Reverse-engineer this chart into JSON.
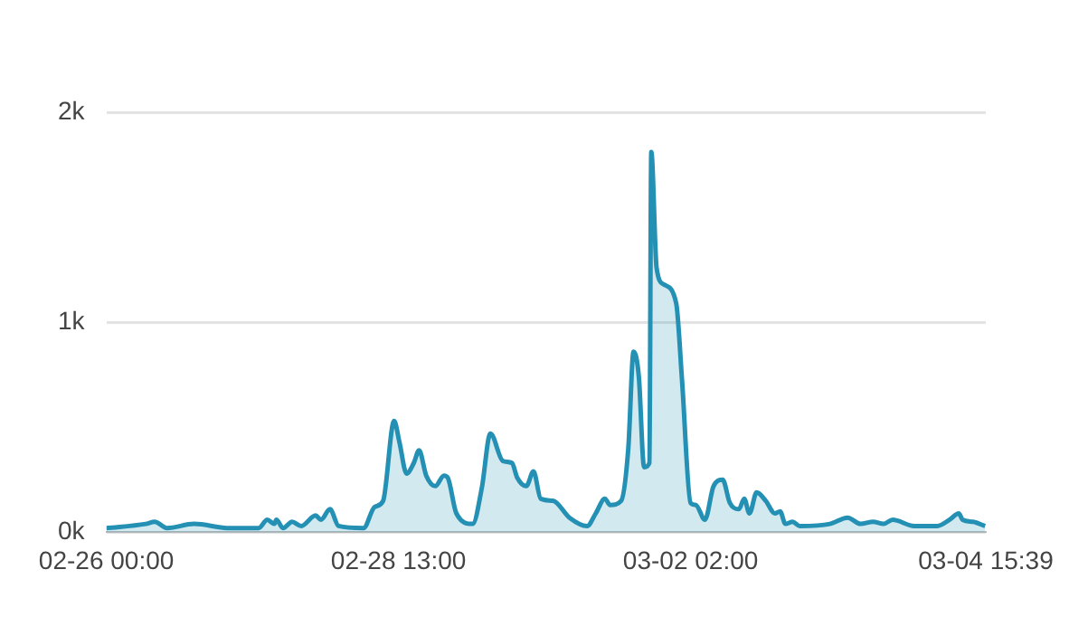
{
  "chart_data": {
    "type": "area",
    "x": [
      "--02-26T00:00",
      "--02-26T08:12",
      "--02-26T10:06",
      "--02-26T12:42",
      "--02-26T18:18",
      "--02-27T01:48",
      "--02-27T07:48",
      "--02-27T09:36",
      "--02-27T11:06",
      "--02-27T11:30",
      "--02-27T12:54",
      "--02-27T14:48",
      "--02-27T16:42",
      "--02-27T19:42",
      "--02-27T20:48",
      "--02-27T22:42",
      "--02-28T00:30",
      "--02-28T05:42",
      "--02-28T08:00",
      "--02-28T09:48",
      "--02-28T12:06",
      "--02-28T13:12",
      "--02-28T14:42",
      "--02-28T16:12",
      "--02-28T17:18",
      "--02-28T18:48",
      "--02-28T20:42",
      "--02-28T22:30",
      "--02-28T23:18",
      "--02-29T01:06",
      "--02-29T04:30",
      "--02-29T06:24",
      "--02-29T08:12",
      "--02-29T10:48",
      "--02-29T12:42",
      "--02-29T13:48",
      "--02-29T15:42",
      "--02-29T17:12",
      "--02-29T18:42",
      "--02-29T21:18",
      "--03-01T00:42",
      "--03-01T04:24",
      "--03-01T06:12",
      "--03-01T08:06",
      "--03-01T09:12",
      "--03-01T11:30",
      "--03-01T13:00",
      "--03-01T14:06",
      "--03-01T15:12",
      "--03-01T16:18",
      "--03-01T17:24",
      "--03-01T17:48",
      "--03-01T18:54",
      "--03-01T20:24",
      "--03-01T23:00",
      "--03-02T00:12",
      "--03-02T02:00",
      "--03-02T03:06",
      "--03-02T05:00",
      "--03-02T06:48",
      "--03-02T08:42",
      "--03-02T10:12",
      "--03-02T12:06",
      "--03-02T13:12",
      "--03-02T14:18",
      "--03-02T15:48",
      "--03-02T17:42",
      "--03-02T19:36",
      "--03-02T20:42",
      "--03-02T21:48",
      "--03-02T23:18",
      "--03-03T00:48",
      "--03-03T07:06",
      "--03-03T10:48",
      "--03-03T13:30",
      "--03-03T16:06",
      "--03-03T18:18",
      "--03-03T20:12",
      "--03-04T00:42",
      "--03-04T05:30",
      "--03-04T08:06",
      "--03-04T10:00",
      "--03-04T10:48",
      "--03-04T13:00",
      "--03-04T15:30"
    ],
    "series": [
      {
        "color": "#2390b4",
        "values": [
          20,
          40,
          50,
          20,
          40,
          20,
          20,
          60,
          40,
          60,
          20,
          50,
          30,
          80,
          60,
          110,
          30,
          20,
          120,
          150,
          530,
          430,
          280,
          330,
          390,
          270,
          220,
          270,
          260,
          90,
          40,
          210,
          470,
          340,
          330,
          260,
          220,
          290,
          160,
          150,
          70,
          30,
          90,
          160,
          130,
          150,
          400,
          860,
          740,
          310,
          330,
          1810,
          1260,
          1180,
          1090,
          730,
          140,
          130,
          60,
          220,
          250,
          140,
          110,
          160,
          90,
          190,
          150,
          90,
          100,
          40,
          50,
          30,
          40,
          70,
          40,
          50,
          40,
          60,
          30,
          30,
          60,
          90,
          60,
          50,
          30
        ]
      }
    ],
    "xlim": [
      "--02-26T00:00",
      "--03-04T15:39"
    ],
    "xticks": [
      {
        "value": "--02-26T00:00",
        "label": "02-26 00:00"
      },
      {
        "value": "--02-28T13:00",
        "label": "02-28 13:00"
      },
      {
        "value": "--03-02T02:00",
        "label": "03-02 02:00"
      },
      {
        "value": "--03-04T15:39",
        "label": "03-04 15:39"
      }
    ],
    "ylim": [
      0,
      2000
    ],
    "yticks": [
      {
        "value": 0,
        "label": "0k"
      },
      {
        "value": 1000,
        "label": "1k"
      },
      {
        "value": 2000,
        "label": "2k"
      }
    ],
    "grid": "y",
    "marker": "none",
    "line_style": "solid",
    "legend": false
  }
}
